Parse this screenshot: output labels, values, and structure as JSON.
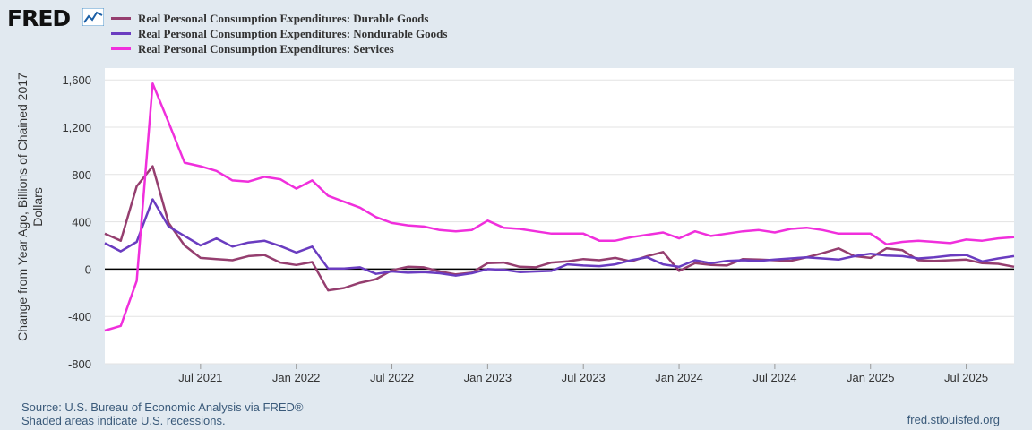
{
  "logo": {
    "text": "FRED",
    "icon": "chart-line-icon"
  },
  "footer": {
    "source": "Source: U.S. Bureau of Economic Analysis via FRED®",
    "recession_note": "Shaded areas indicate U.S. recessions.",
    "url": "fred.stlouisfed.org"
  },
  "colors": {
    "background": "#e1e9f0",
    "plot": "#ffffff",
    "grid": "#e6e6e6"
  },
  "chart_data": {
    "type": "line",
    "ylabel": "Change from Year Ago, Billions of Chained 2017 Dollars",
    "ylim": [
      -800,
      1700
    ],
    "yticks": [
      -800,
      -400,
      0,
      400,
      800,
      1200,
      1600
    ],
    "ytick_labels": [
      "-800",
      "-400",
      "0",
      "400",
      "800",
      "1,200",
      "1,600"
    ],
    "x_range": [
      "2021-01",
      "2025-12"
    ],
    "xticks": [
      {
        "label": "Jul 2021",
        "index": 6
      },
      {
        "label": "Jan 2022",
        "index": 12
      },
      {
        "label": "Jul 2022",
        "index": 18
      },
      {
        "label": "Jan 2023",
        "index": 24
      },
      {
        "label": "Jul 2023",
        "index": 30
      },
      {
        "label": "Jan 2024",
        "index": 36
      },
      {
        "label": "Jul 2024",
        "index": 42
      },
      {
        "label": "Jan 2025",
        "index": 48
      },
      {
        "label": "Jul 2025",
        "index": 54
      }
    ],
    "series": [
      {
        "name": "Real Personal Consumption Expenditures: Durable Goods",
        "color": "#953e6f",
        "values": [
          300,
          240,
          700,
          870,
          390,
          200,
          95,
          85,
          75,
          110,
          120,
          55,
          35,
          60,
          -180,
          -160,
          -115,
          -85,
          -10,
          20,
          15,
          -20,
          -45,
          -30,
          50,
          55,
          20,
          15,
          55,
          65,
          85,
          75,
          95,
          65,
          110,
          145,
          -15,
          50,
          35,
          30,
          85,
          80,
          75,
          70,
          100,
          135,
          175,
          110,
          95,
          175,
          160,
          75,
          70,
          75,
          80,
          50,
          45,
          20
        ]
      },
      {
        "name": "Real Personal Consumption Expenditures: Nondurable Goods",
        "color": "#6a3cc0",
        "values": [
          220,
          150,
          230,
          590,
          360,
          280,
          200,
          260,
          190,
          225,
          240,
          195,
          140,
          190,
          5,
          5,
          15,
          -40,
          -20,
          -30,
          -25,
          -35,
          -55,
          -35,
          0,
          -5,
          -25,
          -20,
          -15,
          40,
          30,
          25,
          40,
          75,
          100,
          40,
          20,
          75,
          50,
          70,
          75,
          70,
          80,
          90,
          100,
          90,
          80,
          110,
          130,
          115,
          110,
          90,
          100,
          115,
          120,
          65,
          90,
          110
        ]
      },
      {
        "name": "Real Personal Consumption Expenditures: Services",
        "color": "#f02fdc",
        "values": [
          -520,
          -480,
          -100,
          1570,
          1240,
          900,
          870,
          830,
          750,
          740,
          780,
          760,
          680,
          750,
          620,
          570,
          520,
          440,
          390,
          370,
          360,
          330,
          320,
          330,
          410,
          350,
          340,
          320,
          300,
          300,
          300,
          240,
          240,
          270,
          290,
          310,
          260,
          320,
          280,
          300,
          320,
          330,
          310,
          340,
          350,
          330,
          300,
          300,
          300,
          210,
          230,
          240,
          230,
          220,
          250,
          240,
          260,
          270
        ]
      }
    ]
  }
}
